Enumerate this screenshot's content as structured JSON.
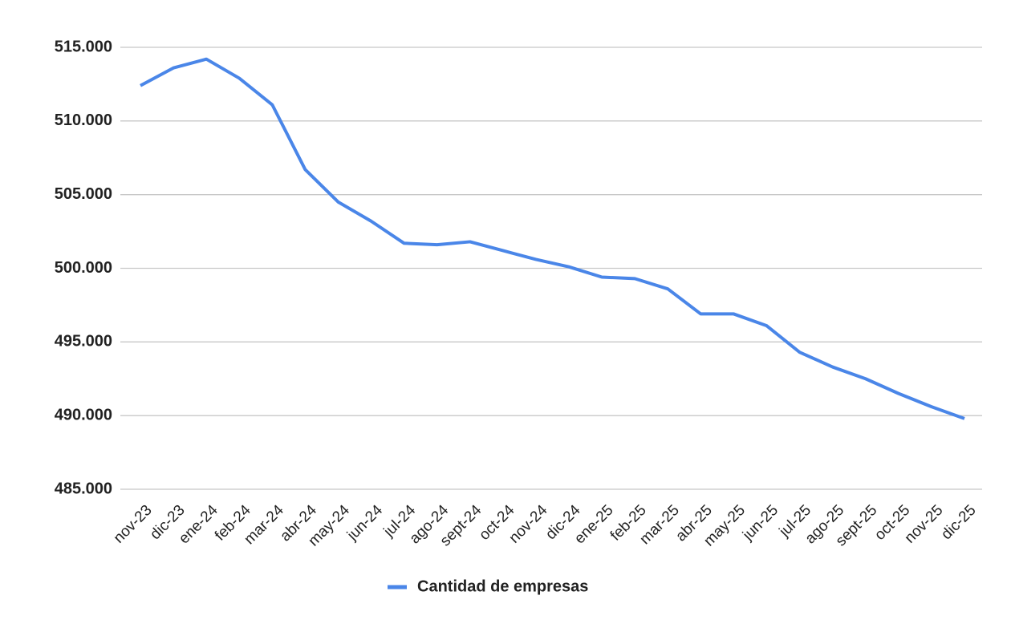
{
  "chart_data": {
    "type": "line",
    "categories": [
      "nov-23",
      "dic-23",
      "ene-24",
      "feb-24",
      "mar-24",
      "abr-24",
      "may-24",
      "jun-24",
      "jul-24",
      "ago-24",
      "sept-24",
      "oct-24",
      "nov-24",
      "dic-24",
      "ene-25",
      "feb-25",
      "mar-25",
      "abr-25",
      "may-25",
      "jun-25",
      "jul-25",
      "ago-25",
      "sept-25",
      "oct-25",
      "nov-25",
      "dic-25"
    ],
    "series": [
      {
        "name": "Cantidad de empresas",
        "color": "#4a86e8",
        "values": [
          512400,
          513600,
          514200,
          512900,
          511100,
          506700,
          504500,
          503200,
          501700,
          501600,
          501800,
          501200,
          500600,
          500100,
          499400,
          499300,
          498600,
          496900,
          496900,
          496100,
          494300,
          493300,
          492500,
          491500,
          490600,
          489800
        ]
      }
    ],
    "ylim": [
      485000,
      515000
    ],
    "yticks": [
      {
        "value": 485000,
        "label": "485.000"
      },
      {
        "value": 490000,
        "label": "490.000"
      },
      {
        "value": 495000,
        "label": "495.000"
      },
      {
        "value": 500000,
        "label": "500.000"
      },
      {
        "value": 505000,
        "label": "505.000"
      },
      {
        "value": 510000,
        "label": "510.000"
      },
      {
        "value": 515000,
        "label": "515.000"
      }
    ],
    "grid": true,
    "legend": "bottom"
  }
}
